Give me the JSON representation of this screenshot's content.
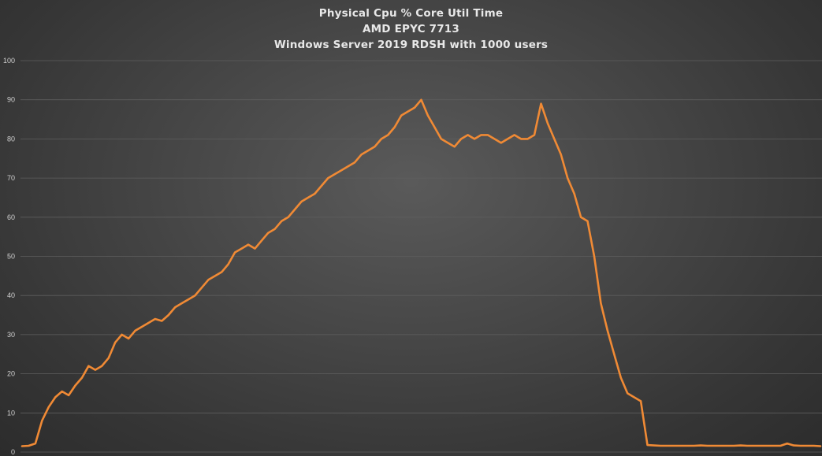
{
  "colors": {
    "line": "#f08a35",
    "grid": "#5e5e5e",
    "text": "#e8e8e8"
  },
  "chart_data": {
    "type": "line",
    "title": "Physical Cpu % Core Util Time",
    "subtitle": "AMD EPYC 7713",
    "subtitle2": "Windows Server 2019 RDSH with 1000 users",
    "xlabel": "",
    "ylabel": "",
    "ylim": [
      0,
      100
    ],
    "yticks": [
      "0",
      "10",
      "20",
      "30",
      "40",
      "50",
      "60",
      "70",
      "80",
      "90",
      "100"
    ],
    "grid": true,
    "legend": "none",
    "series": [
      {
        "values": [
          1.5,
          1.6,
          2.2,
          8,
          11.5,
          14,
          15.5,
          14.5,
          17,
          19,
          22,
          21,
          22,
          24,
          28,
          30,
          29,
          31,
          32,
          33,
          34,
          33.5,
          35,
          37,
          38,
          39,
          40,
          42,
          44,
          45,
          46,
          48,
          51,
          52,
          53,
          52,
          54,
          56,
          57,
          59,
          60,
          62,
          64,
          65,
          66,
          68,
          70,
          71,
          72,
          73,
          74,
          76,
          77,
          78,
          80,
          81,
          83,
          86,
          87,
          88,
          90,
          86,
          83,
          80,
          79,
          78,
          80,
          81,
          80,
          81,
          81,
          80,
          79,
          80,
          81,
          80,
          80,
          81,
          89,
          84,
          80,
          76,
          70,
          66,
          60,
          59,
          50,
          38,
          31,
          25,
          19,
          15,
          14,
          13,
          1.8,
          1.7,
          1.6,
          1.6,
          1.6,
          1.6,
          1.6,
          1.6,
          1.7,
          1.6,
          1.6,
          1.6,
          1.6,
          1.6,
          1.7,
          1.6,
          1.6,
          1.6,
          1.6,
          1.6,
          1.6,
          2.2,
          1.7,
          1.6,
          1.6,
          1.6,
          1.5
        ]
      }
    ]
  }
}
